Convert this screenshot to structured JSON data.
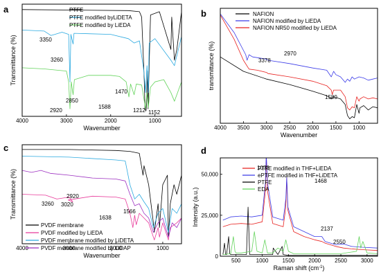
{
  "figure": {
    "chart_data": [
      {
        "panel": "a",
        "type": "line",
        "xlabel": "Wavenumber",
        "ylabel": "Transmittance (%)",
        "xlim": [
          4000,
          400
        ],
        "xticks": [
          4000,
          3000,
          2000,
          1000
        ],
        "series": [
          {
            "name": "PTFE",
            "color": "#000000",
            "x": [
              4000,
              1600,
              1350,
              1300,
              1260,
              1240,
              1225,
              1205,
              1195,
              1170,
              1155,
              1140,
              1100,
              900,
              640,
              620,
              560,
              505,
              400
            ],
            "y": [
              0.97,
              0.96,
              0.95,
              0.9,
              0.5,
              0.3,
              0.05,
              0.03,
              0.05,
              0.4,
              0.05,
              0.3,
              0.92,
              0.95,
              0.6,
              0.9,
              0.5,
              0.6,
              0.95
            ]
          },
          {
            "name": "PTFE modified byLiDETA",
            "color": "#2aa9e0",
            "x": [
              4000,
              3500,
              3350,
              3260,
              3100,
              2950,
              2920,
              2900,
              2850,
              2830,
              2000,
              1600,
              1470,
              1350,
              1250,
              1212,
              1180,
              1152,
              1130,
              1000,
              640,
              560,
              400
            ],
            "y": [
              0.78,
              0.77,
              0.73,
              0.74,
              0.76,
              0.74,
              0.3,
              0.74,
              0.65,
              0.75,
              0.74,
              0.7,
              0.66,
              0.68,
              0.4,
              0.2,
              0.45,
              0.2,
              0.66,
              0.7,
              0.5,
              0.45,
              0.72
            ]
          },
          {
            "name": "PTFE modified by LiEDA",
            "color": "#62d35a",
            "x": [
              4000,
              3500,
              3000,
              2950,
              2920,
              2890,
              2850,
              2820,
              2500,
              2000,
              1800,
              1650,
              1588,
              1550,
              1470,
              1420,
              1300,
              1212,
              1180,
              1152,
              1100,
              1000,
              800,
              640,
              560,
              400
            ],
            "y": [
              0.43,
              0.42,
              0.4,
              0.3,
              0.05,
              0.3,
              0.18,
              0.32,
              0.36,
              0.36,
              0.35,
              0.3,
              0.16,
              0.28,
              0.18,
              0.28,
              0.27,
              0.05,
              0.2,
              0.06,
              0.25,
              0.3,
              0.32,
              0.2,
              0.12,
              0.3
            ]
          }
        ],
        "annotations": [
          "3350",
          "3260",
          "2920",
          "2850",
          "1588",
          "1470",
          "1212",
          "1152"
        ]
      },
      {
        "panel": "b",
        "type": "line",
        "xlabel": "Wavenumber",
        "ylabel": "transmittance (%)",
        "xlim": [
          4000,
          600
        ],
        "xticks": [
          4000,
          3500,
          3000,
          2500,
          2000,
          1500,
          1000
        ],
        "series": [
          {
            "name": "NAFION",
            "color": "#000000",
            "x": [
              4000,
              3500,
              3000,
              2500,
              2000,
              1700,
              1600,
              1550,
              1400,
              1300,
              1250,
              1200,
              1150,
              1100,
              1050,
              1000,
              980,
              900,
              800,
              700,
              600
            ],
            "y": [
              0.58,
              0.45,
              0.38,
              0.33,
              0.27,
              0.23,
              0.2,
              0.22,
              0.2,
              0.15,
              0.05,
              0.02,
              0.04,
              0.03,
              0.15,
              0.07,
              0.12,
              0.14,
              0.1,
              0.13,
              0.12
            ]
          },
          {
            "name": "NAFION modified by LiEDA",
            "color": "#3a3ae8",
            "x": [
              4000,
              3700,
              3450,
              3420,
              3378,
              3300,
              3000,
              2970,
              2500,
              2000,
              1700,
              1600,
              1550,
              1500,
              1400,
              1300,
              1250,
              1200,
              1150,
              1100,
              1000,
              900,
              800,
              700,
              600
            ],
            "y": [
              0.97,
              0.8,
              0.6,
              0.55,
              0.6,
              0.58,
              0.56,
              0.55,
              0.52,
              0.48,
              0.46,
              0.4,
              0.45,
              0.42,
              0.4,
              0.35,
              0.38,
              0.36,
              0.4,
              0.38,
              0.4,
              0.39,
              0.37,
              0.38,
              0.39
            ]
          },
          {
            "name": "NAFION NR50 modified by LiEDA",
            "color": "#e8201e",
            "x": [
              4000,
              3700,
              3500,
              3378,
              3200,
              3000,
              2970,
              2500,
              2000,
              1700,
              1600,
              1580,
              1550,
              1400,
              1300,
              1250,
              1200,
              1150,
              1100,
              1050,
              1000,
              980,
              900,
              800,
              700,
              600
            ],
            "y": [
              0.96,
              0.74,
              0.55,
              0.47,
              0.46,
              0.44,
              0.43,
              0.4,
              0.36,
              0.32,
              0.28,
              0.24,
              0.28,
              0.28,
              0.22,
              0.12,
              0.1,
              0.13,
              0.12,
              0.22,
              0.18,
              0.2,
              0.22,
              0.2,
              0.21,
              0.2
            ]
          }
        ],
        "annotations": [
          "3378",
          "2970",
          "1580"
        ]
      },
      {
        "panel": "c",
        "type": "line",
        "xlabel": "Wavenumber",
        "ylabel": "Transmittance (%)",
        "xlim": [
          4000,
          600
        ],
        "xticks": [
          4000,
          3000,
          2000,
          1000
        ],
        "series": [
          {
            "name": "PVDF membrane",
            "color": "#000000",
            "x": [
              4000,
              3000,
              2000,
              1700,
              1500,
              1420,
              1400,
              1300,
              1200,
              1180,
              1100,
              1070,
              1000,
              900,
              880,
              840,
              760,
              700,
              600
            ],
            "y": [
              0.97,
              0.97,
              0.96,
              0.95,
              0.93,
              0.7,
              0.8,
              0.6,
              0.2,
              0.1,
              0.4,
              0.15,
              0.6,
              0.7,
              0.05,
              0.4,
              0.6,
              0.5,
              0.7
            ]
          },
          {
            "name": "PVDF modified by LiEDA",
            "color": "#e8399a",
            "x": [
              4000,
              3500,
              3260,
              3000,
              2920,
              3020,
              2500,
              2000,
              1800,
              1700,
              1638,
              1600,
              1566,
              1500,
              1400,
              1300,
              1200,
              1180,
              1100,
              1070,
              1000,
              880,
              840,
              700,
              600
            ],
            "y": [
              0.5,
              0.49,
              0.45,
              0.47,
              0.42,
              0.44,
              0.48,
              0.47,
              0.45,
              0.3,
              0.15,
              0.28,
              0.18,
              0.3,
              0.25,
              0.2,
              0.05,
              0.02,
              0.15,
              0.05,
              0.2,
              0.02,
              0.15,
              0.2,
              0.25
            ]
          },
          {
            "name": "PVDF membrane modified by LiDETA",
            "color": "#2aa9e0",
            "x": [
              4000,
              3000,
              2000,
              1800,
              1700,
              1600,
              1500,
              1400,
              1300,
              1200,
              1100,
              1000,
              880,
              800,
              700,
              600
            ],
            "y": [
              0.9,
              0.89,
              0.86,
              0.85,
              0.6,
              0.45,
              0.5,
              0.42,
              0.35,
              0.15,
              0.3,
              0.35,
              0.1,
              0.35,
              0.3,
              0.4
            ]
          },
          {
            "name": "PVDF membrane modified by LiDAP",
            "color": "#9c2fc0",
            "x": [
              4000,
              3800,
              3600,
              3400,
              3000,
              2500,
              2000,
              1800,
              1700,
              1600,
              1500,
              1400,
              1300,
              1200,
              1100,
              1000,
              880,
              800,
              700,
              600
            ],
            "y": [
              0.75,
              0.73,
              0.75,
              0.72,
              0.7,
              0.67,
              0.66,
              0.64,
              0.5,
              0.38,
              0.4,
              0.3,
              0.25,
              0.1,
              0.2,
              0.25,
              0.05,
              0.2,
              0.15,
              0.25
            ]
          }
        ],
        "annotations": [
          "3260",
          "2920",
          "3020",
          "1638",
          "1566"
        ]
      },
      {
        "panel": "d",
        "type": "line",
        "xlabel": "Raman shift (cm",
        "xlabel_sup": "-1",
        "xlabel_end": ")",
        "ylabel": "Intensity (a.u.)",
        "xlim": [
          200,
          3200
        ],
        "ylim": [
          0,
          60000
        ],
        "xticks": [
          500,
          1000,
          1500,
          2000,
          2500,
          3000
        ],
        "yticks": [
          0,
          25000,
          50000
        ],
        "ytick_labels": [
          "0",
          "25,000",
          "50,000"
        ],
        "series": [
          {
            "name": "PTFE modified in THF+LiEDA",
            "color": "#e8201e",
            "x": [
              250,
              400,
              600,
              800,
              1000,
              1060,
              1078,
              1100,
              1200,
              1400,
              1450,
              1468,
              1490,
              1600,
              1800,
              2000,
              2137,
              2200,
              2400,
              2550,
              2700,
              2900,
              3200
            ],
            "y": [
              18000,
              19500,
              20000,
              19500,
              21000,
              40000,
              62000,
              40000,
              20000,
              18000,
              30000,
              48000,
              28000,
              15000,
              12000,
              10000,
              9000,
              8000,
              6000,
              5000,
              4500,
              4000,
              3500
            ]
          },
          {
            "name": "ePTFE modified in THF+LiDETA",
            "color": "#3a3ae8",
            "x": [
              250,
              400,
              600,
              800,
              1000,
              1060,
              1078,
              1100,
              1200,
              1400,
              1450,
              1468,
              1490,
              1600,
              1800,
              2000,
              2137,
              2200,
              2400,
              2550,
              2700,
              2900,
              3200
            ],
            "y": [
              22000,
              24000,
              24500,
              24000,
              25000,
              45000,
              62000,
              45000,
              24000,
              22000,
              35000,
              48000,
              30000,
              18000,
              15000,
              12000,
              12000,
              9000,
              7000,
              7500,
              6000,
              5500,
              5000
            ]
          },
          {
            "name": "PTFE",
            "color": "#000000",
            "x": [
              250,
              280,
              300,
              320,
              360,
              380,
              400,
              500,
              700,
              730,
              760,
              1000,
              1100,
              1200,
              1210,
              1300,
              1380,
              1400,
              1500,
              2000,
              3200
            ],
            "y": [
              1000,
              8000,
              1000,
              1000,
              12000,
              1500,
              1000,
              1000,
              1000,
              30000,
              1000,
              1000,
              1000,
              1000,
              5000,
              1000,
              6000,
              1000,
              500,
              500,
              500
            ]
          },
          {
            "name": "EDA",
            "color": "#62d35a",
            "x": [
              250,
              400,
              450,
              480,
              500,
              600,
              800,
              850,
              900,
              1000,
              1050,
              1100,
              1200,
              1300,
              1400,
              1450,
              1500,
              1600,
              2000,
              2500,
              2800,
              2850,
              2880,
              2920,
              3000,
              3200
            ],
            "y": [
              1000,
              1500,
              12000,
              3000,
              2000,
              2000,
              3000,
              15000,
              3000,
              2000,
              10000,
              2000,
              2000,
              5000,
              3000,
              10000,
              3000,
              1500,
              1500,
              1500,
              3000,
              12000,
              5000,
              9000,
              2000,
              1500
            ]
          }
        ],
        "annotations": [
          "1078",
          "1468",
          "2137",
          "2550"
        ]
      }
    ]
  }
}
